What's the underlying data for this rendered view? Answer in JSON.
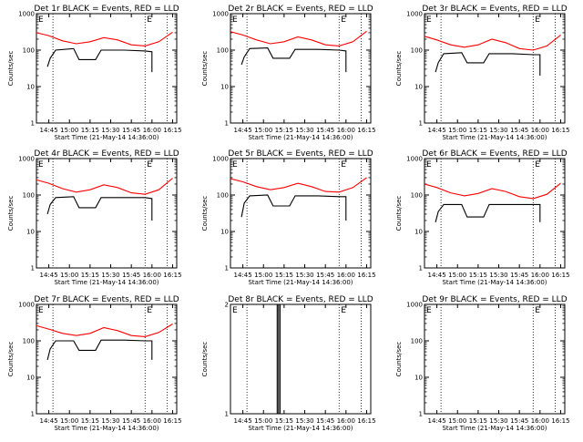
{
  "chart_data": [
    {
      "type": "line",
      "title": "Det 1r BLACK = Events, RED = LLD",
      "xlabel": "Start Time (21-May-14 14:36:00)",
      "ylabel": "Counts/sec",
      "yscale": "log",
      "ylim": [
        1,
        1000
      ],
      "xlim": [
        "14:36",
        "16:18"
      ],
      "xticks": [
        "14:45",
        "15:00",
        "15:15",
        "15:30",
        "15:45",
        "16:00",
        "16:15"
      ],
      "yticks": [
        "1",
        "10",
        "100",
        "1000"
      ],
      "markers": [
        {
          "label": "E",
          "time": "14:36"
        },
        {
          "label": "E",
          "time": "15:55"
        }
      ],
      "vlines": [
        "14:48",
        "15:55",
        "16:11"
      ],
      "series": [
        {
          "color": "#ff0000",
          "x": [
            "14:36",
            "14:45",
            "14:55",
            "15:05",
            "15:15",
            "15:25",
            "15:35",
            "15:45",
            "15:55",
            "16:05",
            "16:15"
          ],
          "y": [
            300,
            250,
            180,
            150,
            170,
            220,
            190,
            140,
            130,
            170,
            310
          ]
        },
        {
          "color": "#000000",
          "x": [
            "14:44",
            "14:46",
            "14:50",
            "15:03",
            "15:07",
            "15:19",
            "15:23",
            "15:40",
            "15:55",
            "16:00",
            "16:00"
          ],
          "y": [
            35,
            60,
            100,
            110,
            55,
            55,
            100,
            100,
            95,
            90,
            25
          ]
        }
      ]
    },
    {
      "type": "line",
      "title": "Det 2r BLACK = Events, RED = LLD",
      "xlabel": "Start Time (21-May-14 14:36:00)",
      "ylabel": "Counts/sec",
      "yscale": "log",
      "ylim": [
        1,
        1000
      ],
      "xlim": [
        "14:36",
        "16:18"
      ],
      "xticks": [
        "14:45",
        "15:00",
        "15:15",
        "15:30",
        "15:45",
        "16:00",
        "16:15"
      ],
      "yticks": [
        "1",
        "10",
        "100",
        "1000"
      ],
      "markers": [
        {
          "label": "E",
          "time": "14:36"
        },
        {
          "label": "E",
          "time": "15:55"
        }
      ],
      "vlines": [
        "14:48",
        "15:55",
        "16:11"
      ],
      "series": [
        {
          "color": "#ff0000",
          "x": [
            "14:36",
            "14:45",
            "14:55",
            "15:05",
            "15:15",
            "15:25",
            "15:35",
            "15:45",
            "15:55",
            "16:05",
            "16:15"
          ],
          "y": [
            320,
            260,
            190,
            150,
            170,
            230,
            190,
            140,
            130,
            170,
            330
          ]
        },
        {
          "color": "#000000",
          "x": [
            "14:44",
            "14:46",
            "14:50",
            "15:03",
            "15:07",
            "15:19",
            "15:23",
            "15:40",
            "15:55",
            "16:00",
            "16:00"
          ],
          "y": [
            40,
            65,
            110,
            115,
            60,
            60,
            105,
            105,
            100,
            95,
            25
          ]
        }
      ]
    },
    {
      "type": "line",
      "title": "Det 3r BLACK = Events, RED = LLD",
      "xlabel": "Start Time (21-May-14 14:36:00)",
      "ylabel": "Counts/sec",
      "yscale": "log",
      "ylim": [
        1,
        1000
      ],
      "xlim": [
        "14:36",
        "16:18"
      ],
      "xticks": [
        "14:45",
        "15:00",
        "15:15",
        "15:30",
        "15:45",
        "16:00",
        "16:15"
      ],
      "yticks": [
        "1",
        "10",
        "100",
        "1000"
      ],
      "markers": [
        {
          "label": "E",
          "time": "14:36"
        },
        {
          "label": "E",
          "time": "15:55"
        }
      ],
      "vlines": [
        "14:48",
        "15:55",
        "16:11"
      ],
      "series": [
        {
          "color": "#ff0000",
          "x": [
            "14:36",
            "14:45",
            "14:55",
            "15:05",
            "15:15",
            "15:25",
            "15:35",
            "15:45",
            "15:55",
            "16:05",
            "16:15"
          ],
          "y": [
            240,
            190,
            140,
            120,
            140,
            200,
            160,
            110,
            100,
            130,
            260
          ]
        },
        {
          "color": "#000000",
          "x": [
            "14:44",
            "14:46",
            "14:50",
            "15:03",
            "15:07",
            "15:19",
            "15:23",
            "15:40",
            "15:55",
            "16:00",
            "16:00"
          ],
          "y": [
            25,
            45,
            80,
            85,
            45,
            45,
            80,
            80,
            75,
            75,
            20
          ]
        }
      ]
    },
    {
      "type": "line",
      "title": "Det 4r BLACK = Events, RED = LLD",
      "xlabel": "Start Time (21-May-14 14:36:00)",
      "ylabel": "Counts/sec",
      "yscale": "log",
      "ylim": [
        1,
        1000
      ],
      "xlim": [
        "14:36",
        "16:18"
      ],
      "xticks": [
        "14:45",
        "15:00",
        "15:15",
        "15:30",
        "15:45",
        "16:00",
        "16:15"
      ],
      "yticks": [
        "1",
        "10",
        "100",
        "1000"
      ],
      "markers": [
        {
          "label": "E",
          "time": "14:36"
        },
        {
          "label": "E",
          "time": "15:55"
        }
      ],
      "vlines": [
        "14:48",
        "15:55",
        "16:11"
      ],
      "series": [
        {
          "color": "#ff0000",
          "x": [
            "14:36",
            "14:45",
            "14:55",
            "15:05",
            "15:15",
            "15:25",
            "15:35",
            "15:45",
            "15:55",
            "16:05",
            "16:15"
          ],
          "y": [
            260,
            210,
            150,
            120,
            140,
            190,
            160,
            115,
            105,
            140,
            290
          ]
        },
        {
          "color": "#000000",
          "x": [
            "14:44",
            "14:46",
            "14:50",
            "15:03",
            "15:07",
            "15:19",
            "15:23",
            "15:40",
            "15:55",
            "16:00",
            "16:00"
          ],
          "y": [
            30,
            55,
            85,
            90,
            45,
            45,
            85,
            85,
            85,
            80,
            20
          ]
        }
      ]
    },
    {
      "type": "line",
      "title": "Det 5r BLACK = Events, RED = LLD",
      "xlabel": "Start Time (21-May-14 14:36:00)",
      "ylabel": "Counts/sec",
      "yscale": "log",
      "ylim": [
        1,
        1000
      ],
      "xlim": [
        "14:36",
        "16:18"
      ],
      "xticks": [
        "14:45",
        "15:00",
        "15:15",
        "15:30",
        "15:45",
        "16:00",
        "16:15"
      ],
      "yticks": [
        "1",
        "10",
        "100",
        "1000"
      ],
      "markers": [
        {
          "label": "E",
          "time": "14:36"
        },
        {
          "label": "E",
          "time": "15:55"
        }
      ],
      "vlines": [
        "14:48",
        "15:55",
        "16:11"
      ],
      "series": [
        {
          "color": "#ff0000",
          "x": [
            "14:36",
            "14:45",
            "14:55",
            "15:05",
            "15:15",
            "15:25",
            "15:35",
            "15:45",
            "15:55",
            "16:05",
            "16:15"
          ],
          "y": [
            280,
            230,
            170,
            140,
            160,
            210,
            170,
            125,
            120,
            160,
            300
          ]
        },
        {
          "color": "#000000",
          "x": [
            "14:44",
            "14:46",
            "14:50",
            "15:03",
            "15:07",
            "15:19",
            "15:23",
            "15:40",
            "15:55",
            "16:00",
            "16:00"
          ],
          "y": [
            25,
            60,
            95,
            100,
            50,
            50,
            95,
            95,
            90,
            90,
            20
          ]
        }
      ]
    },
    {
      "type": "line",
      "title": "Det 6r BLACK = Events, RED = LLD",
      "xlabel": "Start Time (21-May-14 14:36:00)",
      "ylabel": "Counts/sec",
      "yscale": "log",
      "ylim": [
        1,
        1000
      ],
      "xlim": [
        "14:36",
        "16:18"
      ],
      "xticks": [
        "14:45",
        "15:00",
        "15:15",
        "15:30",
        "15:45",
        "16:00",
        "16:15"
      ],
      "yticks": [
        "1",
        "10",
        "100",
        "1000"
      ],
      "markers": [
        {
          "label": "E",
          "time": "14:36"
        },
        {
          "label": "E",
          "time": "15:55"
        }
      ],
      "vlines": [
        "14:48",
        "15:55",
        "16:11"
      ],
      "series": [
        {
          "color": "#ff0000",
          "x": [
            "14:36",
            "14:45",
            "14:55",
            "15:05",
            "15:15",
            "15:25",
            "15:35",
            "15:45",
            "15:55",
            "16:05",
            "16:15"
          ],
          "y": [
            200,
            160,
            115,
            95,
            110,
            150,
            125,
            90,
            80,
            105,
            210
          ]
        },
        {
          "color": "#000000",
          "x": [
            "14:44",
            "14:46",
            "14:50",
            "15:03",
            "15:07",
            "15:19",
            "15:23",
            "15:40",
            "15:55",
            "16:00",
            "16:00"
          ],
          "y": [
            18,
            35,
            55,
            55,
            25,
            25,
            55,
            55,
            55,
            55,
            18
          ]
        }
      ]
    },
    {
      "type": "line",
      "title": "Det 7r BLACK = Events, RED = LLD",
      "xlabel": "Start Time (21-May-14 14:36:00)",
      "ylabel": "Counts/sec",
      "yscale": "log",
      "ylim": [
        1,
        1000
      ],
      "xlim": [
        "14:36",
        "16:18"
      ],
      "xticks": [
        "14:45",
        "15:00",
        "15:15",
        "15:30",
        "15:45",
        "16:00",
        "16:15"
      ],
      "yticks": [
        "1",
        "10",
        "100",
        "1000"
      ],
      "markers": [
        {
          "label": "E",
          "time": "14:36"
        },
        {
          "label": "E",
          "time": "15:55"
        }
      ],
      "vlines": [
        "14:48",
        "15:55",
        "16:11"
      ],
      "series": [
        {
          "color": "#ff0000",
          "x": [
            "14:36",
            "14:45",
            "14:55",
            "15:05",
            "15:15",
            "15:25",
            "15:35",
            "15:45",
            "15:55",
            "16:05",
            "16:15"
          ],
          "y": [
            260,
            210,
            160,
            140,
            160,
            230,
            190,
            140,
            130,
            170,
            290
          ]
        },
        {
          "color": "#000000",
          "x": [
            "14:44",
            "14:46",
            "14:50",
            "15:03",
            "15:07",
            "15:19",
            "15:23",
            "15:40",
            "15:55",
            "16:00",
            "16:00"
          ],
          "y": [
            30,
            60,
            100,
            100,
            55,
            55,
            105,
            105,
            100,
            100,
            30
          ]
        }
      ]
    },
    {
      "type": "line",
      "title": "Det 8r BLACK = Events, RED = LLD",
      "xlabel": "Start Time (21-May-14 14:36:00)",
      "ylabel": "Counts/sec",
      "yscale": "log",
      "ylim": [
        1,
        2
      ],
      "xlim": [
        "14:36",
        "16:18"
      ],
      "xticks": [
        "14:45",
        "15:00",
        "15:15",
        "15:30",
        "15:45",
        "16:00",
        "16:15"
      ],
      "yticks": [
        "1",
        "2"
      ],
      "markers": [
        {
          "label": "E",
          "time": "14:36"
        },
        {
          "label": "E",
          "time": "15:55"
        }
      ],
      "vlines": [
        "14:48",
        "15:55",
        "16:11"
      ],
      "series": [
        {
          "color": "#000000",
          "x": [
            "15:10",
            "15:10",
            "15:11",
            "15:11",
            "15:12",
            "15:12"
          ],
          "y": [
            1,
            2,
            2,
            1,
            1,
            2
          ]
        }
      ]
    },
    {
      "type": "line",
      "title": "Det 9r BLACK = Events, RED = LLD",
      "xlabel": "Start Time (21-May-14 14:36:00)",
      "ylabel": "Counts/sec",
      "yscale": "log",
      "ylim": [
        1,
        1000
      ],
      "xlim": [
        "14:36",
        "16:18"
      ],
      "xticks": [
        "14:45",
        "15:00",
        "15:15",
        "15:30",
        "15:45",
        "16:00",
        "16:15"
      ],
      "yticks": [
        "1",
        "10",
        "100",
        "1000"
      ],
      "markers": [
        {
          "label": "E",
          "time": "14:36"
        },
        {
          "label": "E",
          "time": "15:55"
        }
      ],
      "vlines": [
        "14:48",
        "15:55",
        "16:11"
      ],
      "series": []
    }
  ]
}
